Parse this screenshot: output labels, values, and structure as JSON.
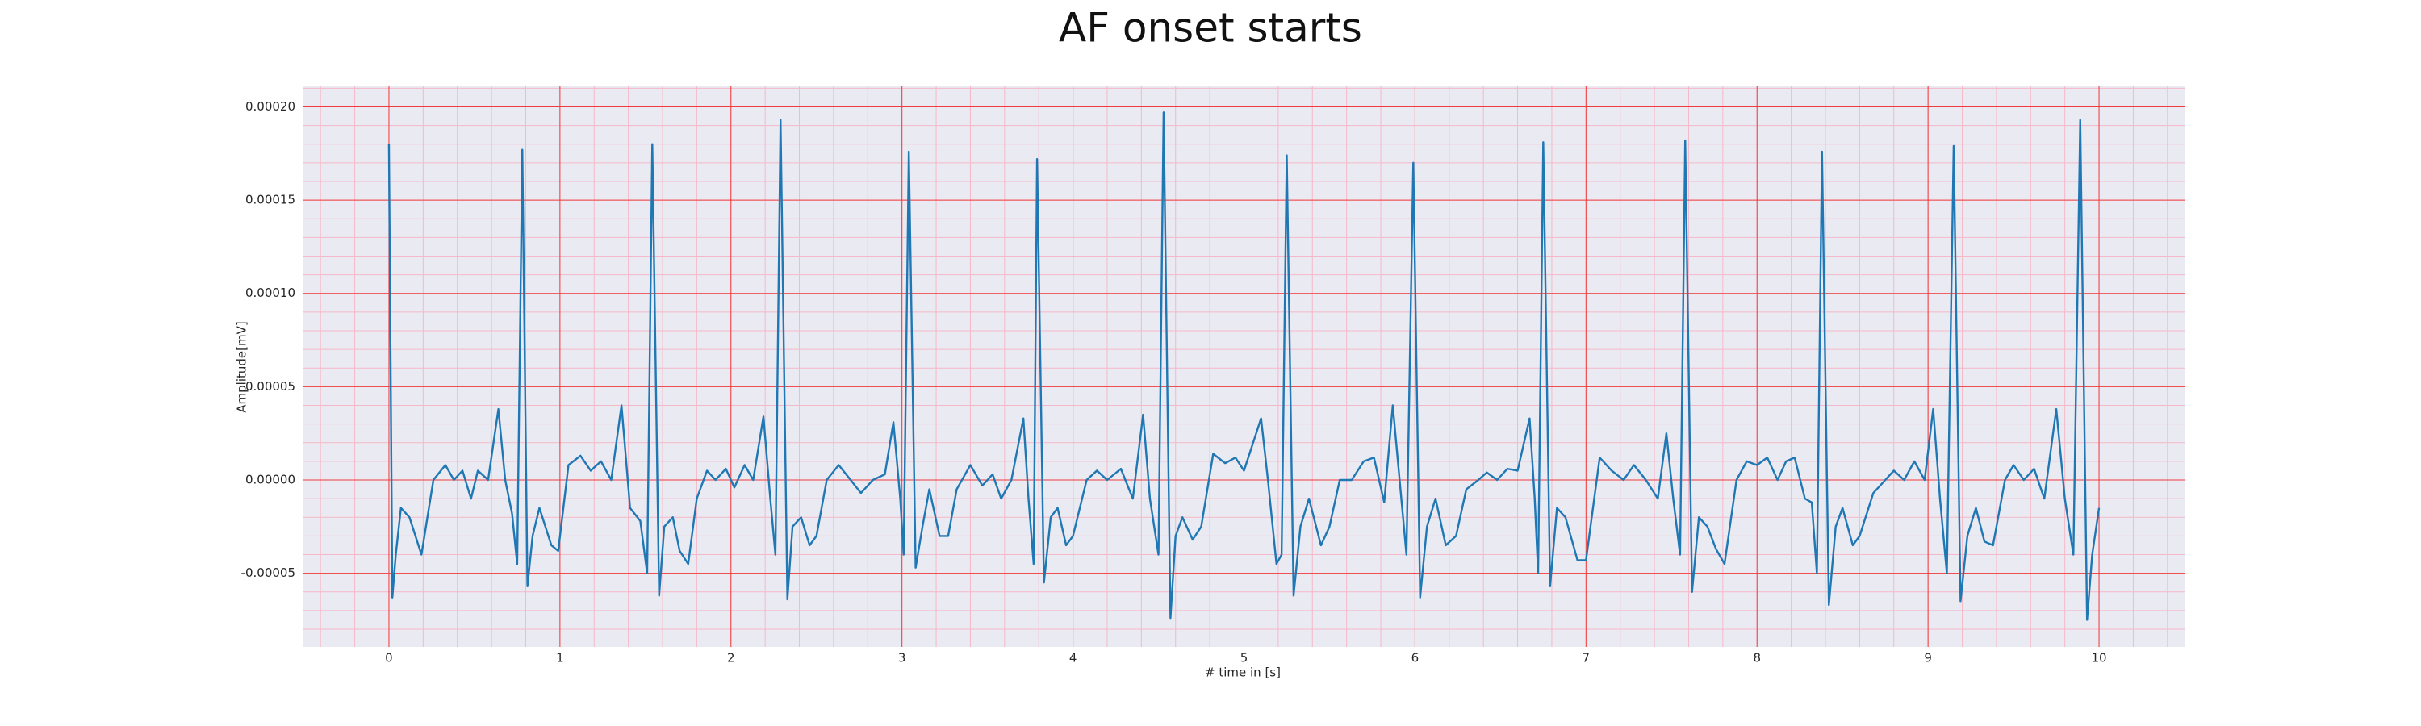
{
  "chart_data": {
    "type": "line",
    "title": "AF onset starts",
    "x_label": "# time in [s]",
    "y_label": "Amplitude[mV]",
    "color": "#1f77b4",
    "grid": true,
    "minor_grid": true,
    "xlim": [
      -0.5,
      10.5
    ],
    "ylim": [
      -8.95e-05,
      0.000211
    ],
    "xticks": [
      0,
      1,
      2,
      3,
      4,
      5,
      6,
      7,
      8,
      9,
      10
    ],
    "yticks": [
      {
        "value": -5e-05,
        "label": "-0.00005"
      },
      {
        "value": 0,
        "label": "0.00000"
      },
      {
        "value": 5e-05,
        "label": "0.00005"
      },
      {
        "value": 0.0001,
        "label": "0.00010"
      },
      {
        "value": 0.00015,
        "label": "0.00015"
      },
      {
        "value": 0.0002,
        "label": "0.00020"
      }
    ],
    "x": [
      0,
      0.02,
      0.04,
      0.07,
      0.12,
      0.19,
      0.26,
      0.33,
      0.38,
      0.43,
      0.48,
      0.52,
      0.58,
      0.64,
      0.68,
      0.72,
      0.75,
      0.78,
      0.81,
      0.84,
      0.88,
      0.95,
      0.99,
      1.05,
      1.12,
      1.18,
      1.24,
      1.3,
      1.36,
      1.41,
      1.47,
      1.51,
      1.54,
      1.58,
      1.61,
      1.66,
      1.7,
      1.75,
      1.8,
      1.86,
      1.91,
      1.97,
      2.02,
      2.08,
      2.13,
      2.19,
      2.23,
      2.26,
      2.29,
      2.33,
      2.36,
      2.41,
      2.46,
      2.5,
      2.56,
      2.63,
      2.7,
      2.76,
      2.83,
      2.9,
      2.95,
      2.99,
      3.01,
      3.04,
      3.08,
      3.12,
      3.16,
      3.22,
      3.27,
      3.32,
      3.4,
      3.47,
      3.53,
      3.58,
      3.64,
      3.71,
      3.74,
      3.77,
      3.79,
      3.83,
      3.87,
      3.91,
      3.96,
      4.0,
      4.08,
      4.14,
      4.2,
      4.28,
      4.35,
      4.41,
      4.45,
      4.5,
      4.53,
      4.57,
      4.6,
      4.64,
      4.7,
      4.75,
      4.82,
      4.89,
      4.95,
      5.0,
      5.1,
      5.14,
      5.19,
      5.22,
      5.25,
      5.29,
      5.33,
      5.38,
      5.45,
      5.5,
      5.56,
      5.63,
      5.7,
      5.76,
      5.82,
      5.87,
      5.91,
      5.95,
      5.99,
      6.03,
      6.07,
      6.12,
      6.18,
      6.24,
      6.3,
      6.37,
      6.42,
      6.48,
      6.54,
      6.6,
      6.67,
      6.7,
      6.72,
      6.75,
      6.79,
      6.83,
      6.88,
      6.95,
      7.0,
      7.08,
      7.15,
      7.22,
      7.28,
      7.35,
      7.42,
      7.47,
      7.51,
      7.55,
      7.58,
      7.62,
      7.66,
      7.71,
      7.76,
      7.81,
      7.88,
      7.94,
      8.0,
      8.06,
      8.12,
      8.17,
      8.22,
      8.28,
      8.32,
      8.35,
      8.38,
      8.42,
      8.46,
      8.5,
      8.56,
      8.6,
      8.68,
      8.75,
      8.8,
      8.86,
      8.92,
      8.98,
      9.03,
      9.07,
      9.11,
      9.15,
      9.19,
      9.23,
      9.28,
      9.33,
      9.38,
      9.45,
      9.5,
      9.56,
      9.62,
      9.68,
      9.75,
      9.8,
      9.85,
      9.89,
      9.93,
      9.96,
      10.0
    ],
    "values": [
      0.00018,
      -6.3e-05,
      -4e-05,
      -1.5e-05,
      -2e-05,
      -4e-05,
      0,
      8e-06,
      0,
      5e-06,
      -1e-05,
      5e-06,
      0,
      3.8e-05,
      0,
      -1.8e-05,
      -4.5e-05,
      0.000177,
      -5.7e-05,
      -3e-05,
      -1.5e-05,
      -3.5e-05,
      -3.8e-05,
      8e-06,
      1.3e-05,
      5e-06,
      1e-05,
      0,
      4e-05,
      -1.5e-05,
      -2.2e-05,
      -5e-05,
      0.00018,
      -6.2e-05,
      -2.5e-05,
      -2e-05,
      -3.8e-05,
      -4.5e-05,
      -1e-05,
      5e-06,
      0,
      6e-06,
      -4e-06,
      8e-06,
      0,
      3.4e-05,
      -1e-05,
      -4e-05,
      0.000193,
      -6.4e-05,
      -2.5e-05,
      -2e-05,
      -3.5e-05,
      -3e-05,
      0,
      8e-06,
      0,
      -7e-06,
      0,
      3e-06,
      3.1e-05,
      -1e-05,
      -4e-05,
      0.000176,
      -4.7e-05,
      -2.5e-05,
      -5e-06,
      -3e-05,
      -3e-05,
      -5e-06,
      8e-06,
      -3e-06,
      3e-06,
      -1e-05,
      0,
      3.3e-05,
      -1e-05,
      -4.5e-05,
      0.000172,
      -5.5e-05,
      -2e-05,
      -1.5e-05,
      -3.5e-05,
      -3e-05,
      0,
      5e-06,
      0,
      6e-06,
      -1e-05,
      3.5e-05,
      -1e-05,
      -4e-05,
      0.000197,
      -7.4e-05,
      -3e-05,
      -2e-05,
      -3.2e-05,
      -2.5e-05,
      1.4e-05,
      9e-06,
      1.2e-05,
      5e-06,
      3.3e-05,
      0,
      -4.5e-05,
      -4e-05,
      0.000174,
      -6.2e-05,
      -2.5e-05,
      -1e-05,
      -3.5e-05,
      -2.5e-05,
      0,
      0,
      1e-05,
      1.2e-05,
      -1.2e-05,
      4e-05,
      0,
      -4e-05,
      0.00017,
      -6.3e-05,
      -2.5e-05,
      -1e-05,
      -3.5e-05,
      -3e-05,
      -5e-06,
      0,
      4e-06,
      0,
      6e-06,
      5e-06,
      3.3e-05,
      -1e-05,
      -5e-05,
      0.000181,
      -5.7e-05,
      -1.5e-05,
      -2e-05,
      -4.3e-05,
      -4.3e-05,
      1.2e-05,
      5e-06,
      0,
      8e-06,
      0,
      -1e-05,
      2.5e-05,
      -1e-05,
      -4e-05,
      0.000182,
      -6e-05,
      -2e-05,
      -2.5e-05,
      -3.7e-05,
      -4.5e-05,
      0,
      1e-05,
      8e-06,
      1.2e-05,
      0,
      1e-05,
      1.2e-05,
      -1e-05,
      -1.2e-05,
      -5e-05,
      0.000176,
      -6.7e-05,
      -2.5e-05,
      -1.5e-05,
      -3.5e-05,
      -3e-05,
      -7e-06,
      0,
      5e-06,
      0,
      1e-05,
      0,
      3.8e-05,
      -1e-05,
      -5e-05,
      0.000179,
      -6.5e-05,
      -3e-05,
      -1.5e-05,
      -3.3e-05,
      -3.5e-05,
      0,
      8e-06,
      0,
      6e-06,
      -1e-05,
      3.8e-05,
      -1e-05,
      -4e-05,
      0.000193,
      -7.5e-05,
      -4e-05,
      -1.5e-05
    ]
  }
}
